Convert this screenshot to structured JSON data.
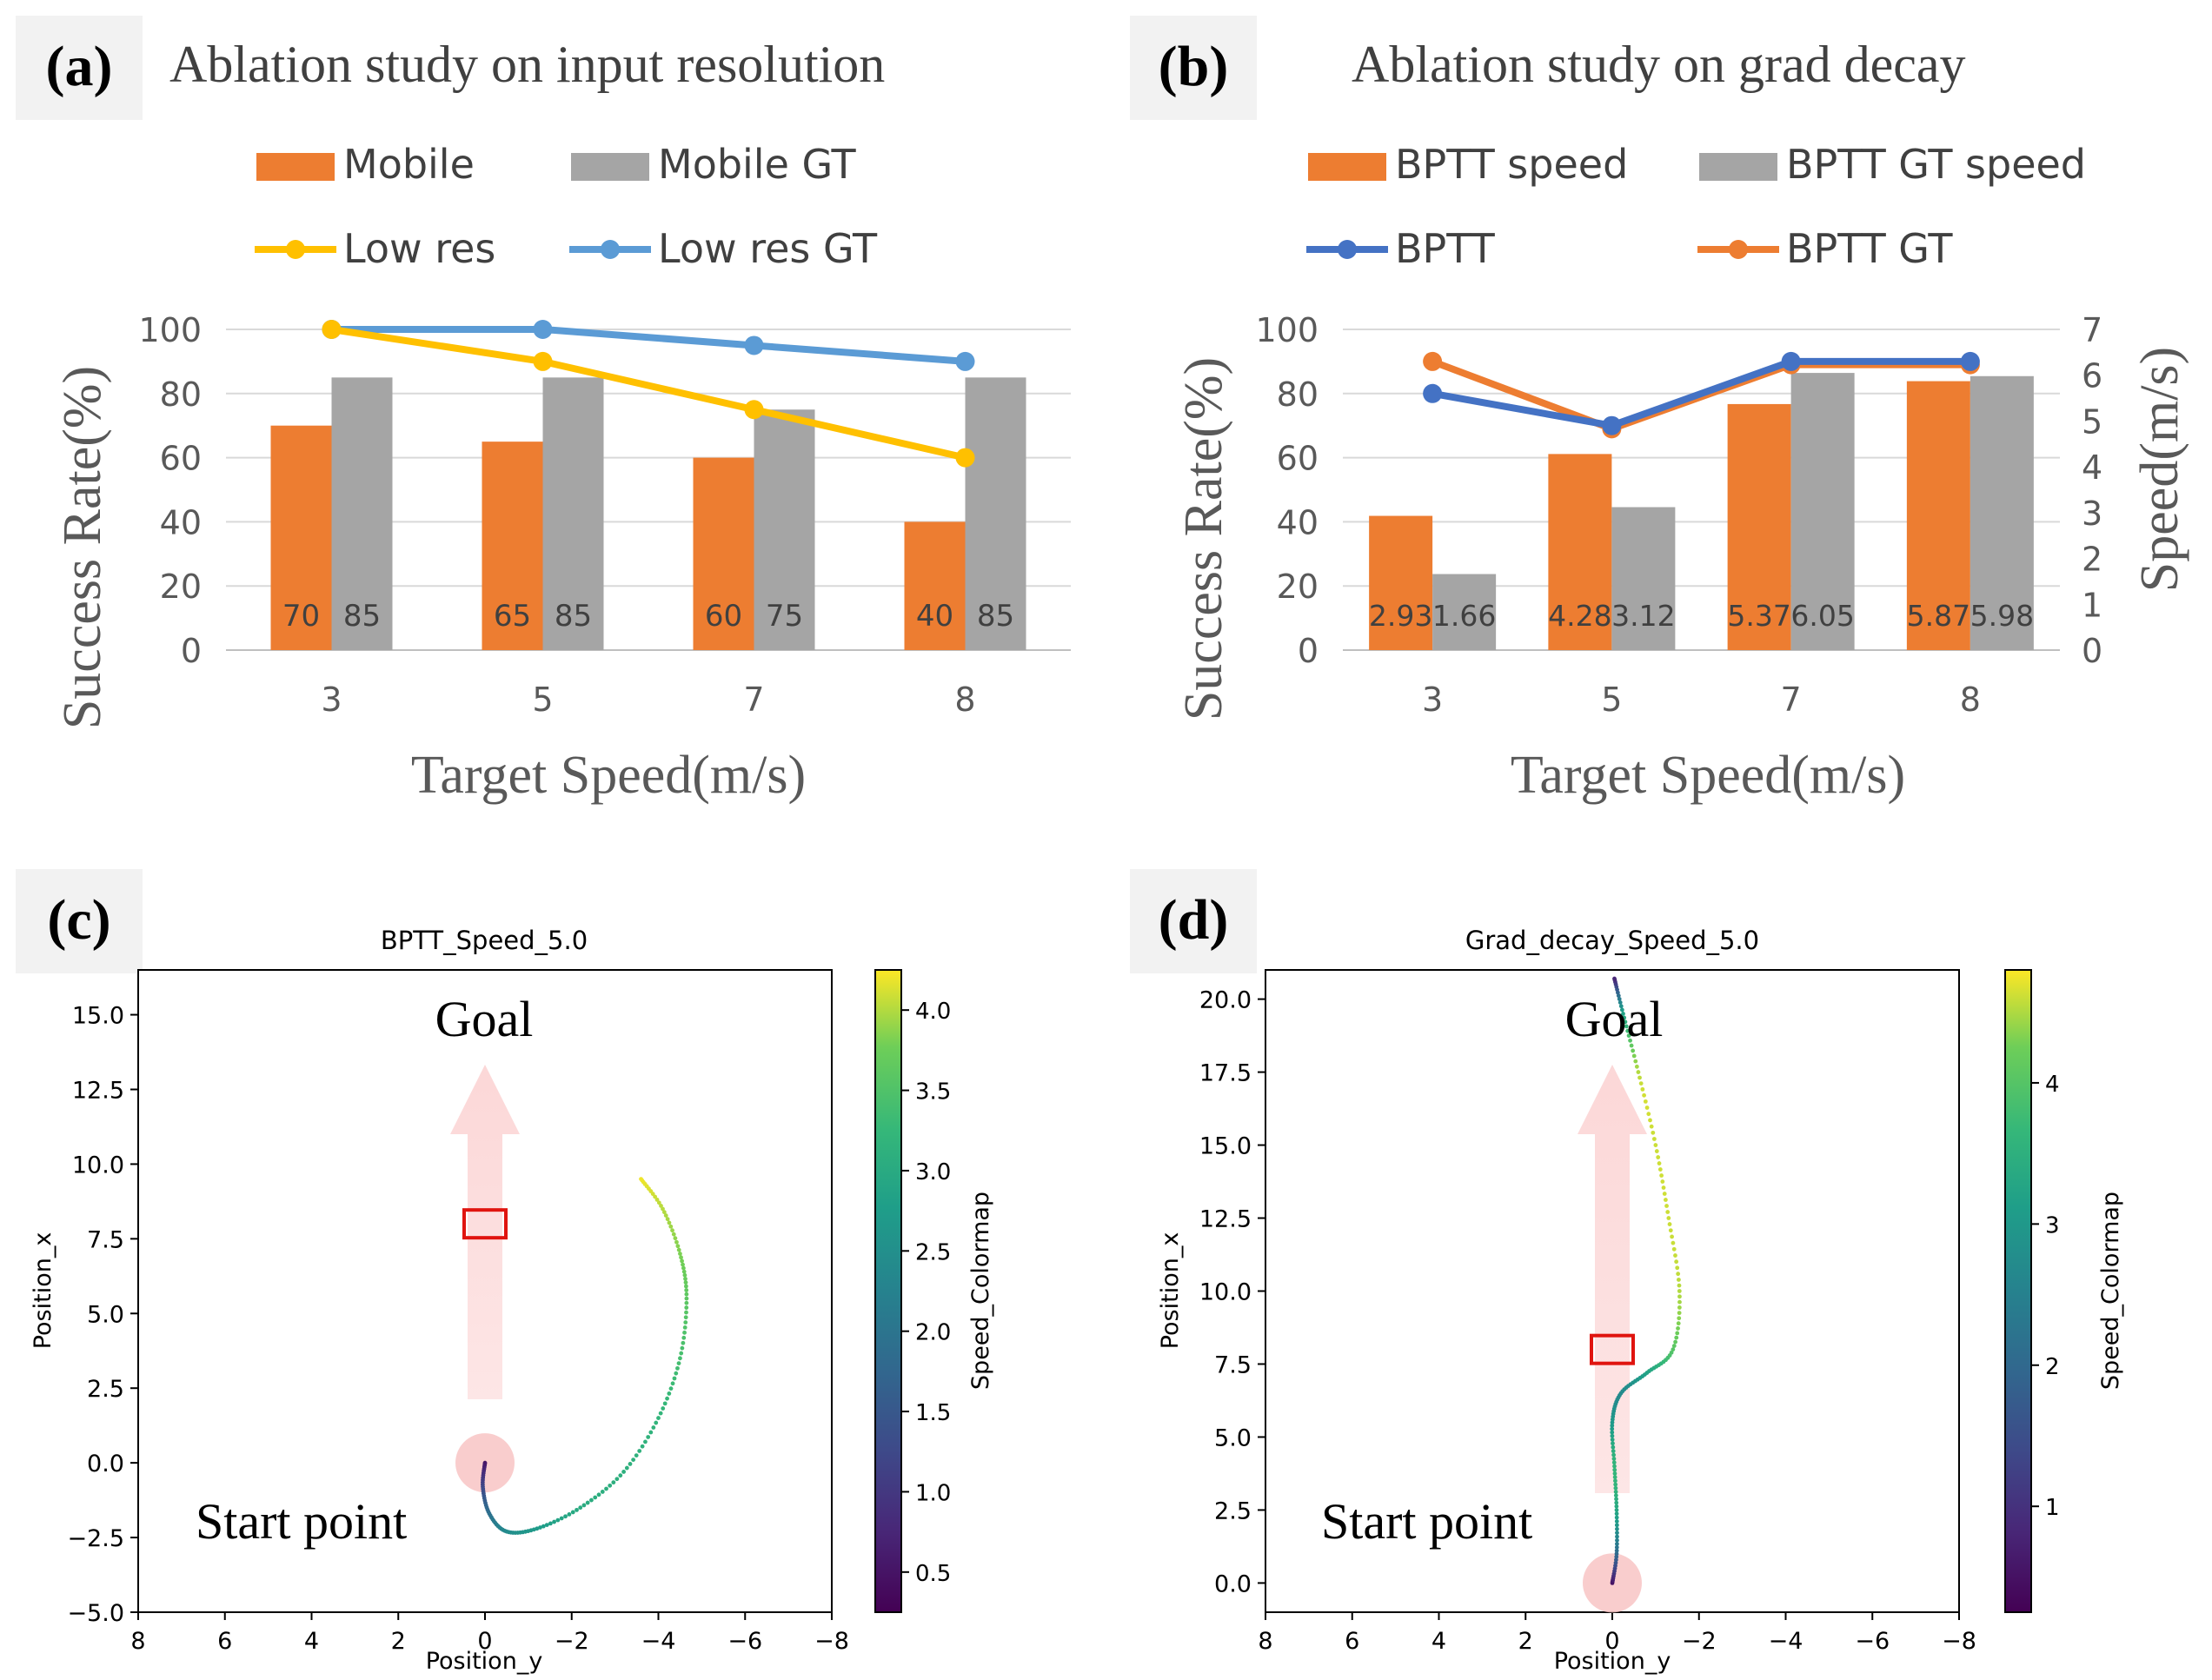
{
  "panel_a": {
    "label": "(a)",
    "title": "Ablation study on input resolution",
    "legend": [
      "Mobile",
      "Mobile GT",
      "Low res",
      "Low res GT"
    ],
    "colors": {
      "bar1": "#ED7D31",
      "bar2": "#A5A5A5",
      "line1": "#FFC000",
      "line2": "#5B9BD5"
    },
    "chart_data": {
      "type": "bar+line",
      "categories": [
        "3",
        "5",
        "7",
        "8"
      ],
      "xlabel": "Target Speed(m/s)",
      "ylabel": "Success Rate(%)",
      "ylim": [
        0,
        100
      ],
      "yticks": [
        "0",
        "20",
        "40",
        "60",
        "80",
        "100"
      ],
      "bars": [
        {
          "name": "Mobile",
          "values": [
            70,
            65,
            60,
            40
          ],
          "labels": [
            "70",
            "65",
            "60",
            "40"
          ]
        },
        {
          "name": "Mobile GT",
          "values": [
            85,
            85,
            75,
            85
          ],
          "labels": [
            "85",
            "85",
            "75",
            "85"
          ]
        }
      ],
      "lines": [
        {
          "name": "Low res",
          "values": [
            100,
            90,
            75,
            60
          ]
        },
        {
          "name": "Low res GT",
          "values": [
            100,
            100,
            95,
            90
          ]
        }
      ]
    }
  },
  "panel_b": {
    "label": "(b)",
    "title": "Ablation study on grad decay",
    "legend": [
      "BPTT speed",
      "BPTT GT speed",
      "BPTT",
      "BPTT GT"
    ],
    "colors": {
      "bar1": "#ED7D31",
      "bar2": "#A5A5A5",
      "line1": "#4472C4",
      "line2": "#ED7D31"
    },
    "chart_data": {
      "type": "bar+line",
      "categories": [
        "3",
        "5",
        "7",
        "8"
      ],
      "xlabel": "Target Speed(m/s)",
      "ylabel": "Success Rate(%)",
      "y2label": "Speed(m/s)",
      "ylim": [
        0,
        100
      ],
      "y2lim": [
        0,
        7
      ],
      "yticks": [
        "0",
        "20",
        "40",
        "60",
        "80",
        "100"
      ],
      "y2ticks": [
        "0",
        "1",
        "2",
        "3",
        "4",
        "5",
        "6",
        "7"
      ],
      "bars": [
        {
          "name": "BPTT speed",
          "values": [
            2.93,
            4.28,
            5.37,
            5.87
          ],
          "labels": [
            "2.93",
            "4.28",
            "5.37",
            "5.87"
          ]
        },
        {
          "name": "BPTT GT speed",
          "values": [
            1.66,
            3.12,
            6.05,
            5.98
          ],
          "labels": [
            "1.66",
            "3.12",
            "6.05",
            "5.98"
          ]
        }
      ],
      "lines": [
        {
          "name": "BPTT",
          "values": [
            80,
            70,
            90,
            90
          ]
        },
        {
          "name": "BPTT GT",
          "values": [
            90,
            69,
            89,
            89
          ]
        }
      ]
    }
  },
  "panel_c": {
    "label": "(c)",
    "title": "BPTT_Speed_5.0",
    "goal_label": "Goal",
    "start_label": "Start point",
    "chart_data": {
      "type": "scatter",
      "xlabel": "Position_y",
      "ylabel": "Position_x",
      "xlim": [
        8,
        -8
      ],
      "ylim": [
        -5,
        16.5
      ],
      "xticks": [
        "8",
        "6",
        "4",
        "2",
        "0",
        "−2",
        "−4",
        "−6",
        "−8"
      ],
      "yticks": [
        "−5.0",
        "−2.5",
        "0.0",
        "2.5",
        "5.0",
        "7.5",
        "10.0",
        "12.5",
        "15.0"
      ],
      "colorbar_label": "Speed_Colormap",
      "colorbar_ticks": [
        "0.5",
        "1.0",
        "1.5",
        "2.0",
        "2.5",
        "3.0",
        "3.5",
        "4.0"
      ],
      "crange": [
        0.25,
        4.25
      ],
      "goal_box": {
        "y": 0,
        "x": 8.0
      },
      "start": {
        "y": 0,
        "x": 0
      },
      "path": [
        {
          "y": 0.0,
          "x": 0.0,
          "s": 0.5
        },
        {
          "y": 0.05,
          "x": -0.8,
          "s": 1.2
        },
        {
          "y": -0.1,
          "x": -1.7,
          "s": 1.9
        },
        {
          "y": -0.5,
          "x": -2.3,
          "s": 2.4
        },
        {
          "y": -1.2,
          "x": -2.2,
          "s": 2.7
        },
        {
          "y": -2.2,
          "x": -1.5,
          "s": 3.0
        },
        {
          "y": -3.2,
          "x": -0.3,
          "s": 3.1
        },
        {
          "y": -4.0,
          "x": 1.5,
          "s": 3.2
        },
        {
          "y": -4.5,
          "x": 3.5,
          "s": 3.4
        },
        {
          "y": -4.65,
          "x": 5.5,
          "s": 3.6
        },
        {
          "y": -4.5,
          "x": 7.0,
          "s": 3.8
        },
        {
          "y": -4.1,
          "x": 8.5,
          "s": 4.0
        },
        {
          "y": -3.6,
          "x": 9.5,
          "s": 4.2
        }
      ]
    }
  },
  "panel_d": {
    "label": "(d)",
    "title": "Grad_decay_Speed_5.0",
    "goal_label": "Goal",
    "start_label": "Start point",
    "chart_data": {
      "type": "scatter",
      "xlabel": "Position_y",
      "ylabel": "Position_x",
      "xlim": [
        8,
        -8
      ],
      "ylim": [
        -1,
        21
      ],
      "xticks": [
        "8",
        "6",
        "4",
        "2",
        "0",
        "−2",
        "−4",
        "−6",
        "−8"
      ],
      "yticks": [
        "0.0",
        "2.5",
        "5.0",
        "7.5",
        "10.0",
        "12.5",
        "15.0",
        "17.5",
        "20.0"
      ],
      "colorbar_label": "Speed_Colormap",
      "colorbar_ticks": [
        "1",
        "2",
        "3",
        "4"
      ],
      "crange": [
        0.25,
        4.8
      ],
      "goal_box": {
        "y": 0,
        "x": 8.0
      },
      "start": {
        "y": 0,
        "x": 0
      },
      "path": [
        {
          "y": 0.0,
          "x": 0.0,
          "s": 0.5
        },
        {
          "y": -0.1,
          "x": 1.0,
          "s": 2.0
        },
        {
          "y": -0.1,
          "x": 2.5,
          "s": 3.3
        },
        {
          "y": -0.05,
          "x": 4.0,
          "s": 3.6
        },
        {
          "y": 0.0,
          "x": 5.5,
          "s": 3.0
        },
        {
          "y": -0.2,
          "x": 6.5,
          "s": 2.7
        },
        {
          "y": -0.8,
          "x": 7.2,
          "s": 3.2
        },
        {
          "y": -1.4,
          "x": 8.0,
          "s": 4.0
        },
        {
          "y": -1.55,
          "x": 10.0,
          "s": 4.5
        },
        {
          "y": -1.3,
          "x": 12.5,
          "s": 4.6
        },
        {
          "y": -1.0,
          "x": 15.0,
          "s": 4.6
        },
        {
          "y": -0.6,
          "x": 17.5,
          "s": 4.5
        },
        {
          "y": -0.25,
          "x": 19.5,
          "s": 3.2
        },
        {
          "y": -0.05,
          "x": 20.7,
          "s": 0.8
        }
      ]
    }
  }
}
